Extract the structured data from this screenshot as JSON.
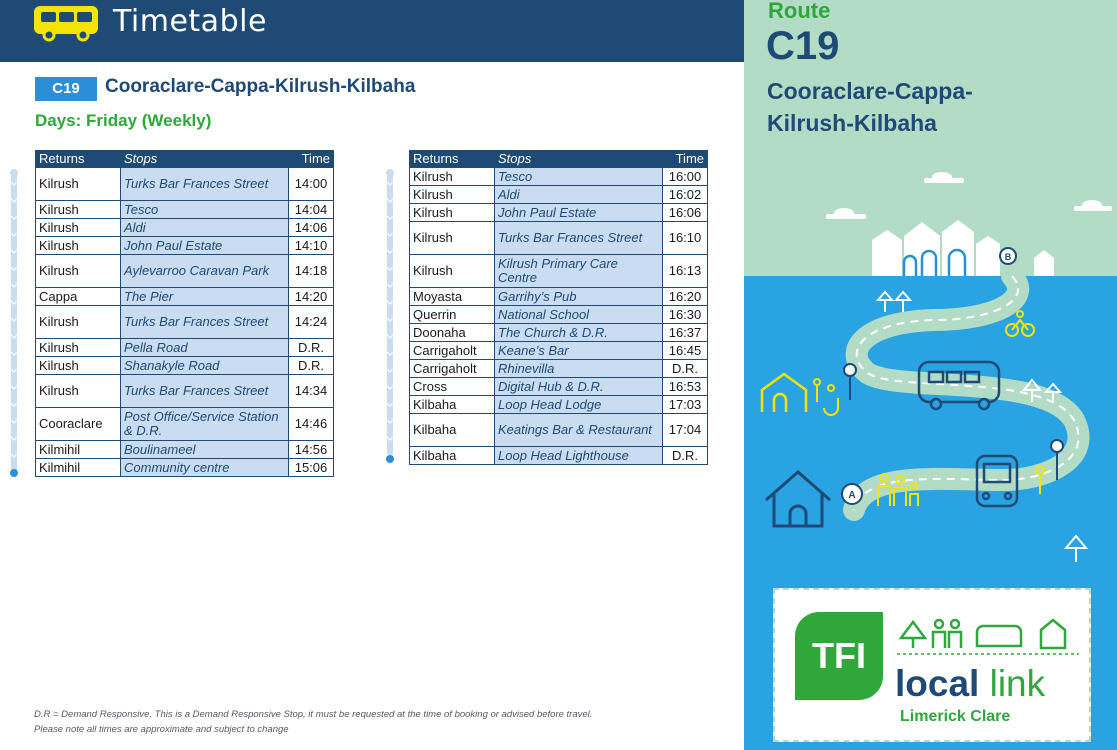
{
  "header": {
    "title": "Timetable",
    "icon": "bus-icon"
  },
  "route": {
    "code": "C19",
    "name": "Cooraclare-Cappa-Kilrush-Kilbaha",
    "days": "Days: Friday (Weekly)"
  },
  "columns": {
    "returns": "Returns",
    "stops": "Stops",
    "time": "Time"
  },
  "table_left": [
    {
      "returns": "Kilrush",
      "stop": "Turks Bar Frances Street",
      "time": "14:00",
      "rows": 2
    },
    {
      "returns": "Kilrush",
      "stop": "Tesco",
      "time": "14:04",
      "rows": 1
    },
    {
      "returns": "Kilrush",
      "stop": "Aldi",
      "time": "14:06",
      "rows": 1
    },
    {
      "returns": "Kilrush",
      "stop": "John Paul Estate",
      "time": "14:10",
      "rows": 1
    },
    {
      "returns": "Kilrush",
      "stop": "Aylevarroo Caravan Park",
      "time": "14:18",
      "rows": 2
    },
    {
      "returns": "Cappa",
      "stop": "The Pier",
      "time": "14:20",
      "rows": 1
    },
    {
      "returns": "Kilrush",
      "stop": "Turks Bar Frances Street",
      "time": "14:24",
      "rows": 2
    },
    {
      "returns": "Kilrush",
      "stop": "Pella Road",
      "time": "D.R.",
      "rows": 1
    },
    {
      "returns": "Kilrush",
      "stop": "Shanakyle Road",
      "time": "D.R.",
      "rows": 1
    },
    {
      "returns": "Kilrush",
      "stop": "Turks Bar Frances Street",
      "time": "14:34",
      "rows": 2
    },
    {
      "returns": "Cooraclare",
      "stop": "Post Office/Service Station & D.R.",
      "time": "14:46",
      "rows": 2
    },
    {
      "returns": "Kilmihil",
      "stop": "Boulinameel",
      "time": "14:56",
      "rows": 1
    },
    {
      "returns": "Kilmihil",
      "stop": "Community centre",
      "time": "15:06",
      "rows": 1
    }
  ],
  "table_right": [
    {
      "returns": "Kilrush",
      "stop": "Tesco",
      "time": "16:00",
      "rows": 1
    },
    {
      "returns": "Kilrush",
      "stop": "Aldi",
      "time": "16:02",
      "rows": 1
    },
    {
      "returns": "Kilrush",
      "stop": "John Paul Estate",
      "time": "16:06",
      "rows": 1
    },
    {
      "returns": "Kilrush",
      "stop": "Turks Bar Frances Street",
      "time": "16:10",
      "rows": 2
    },
    {
      "returns": "Kilrush",
      "stop": "Kilrush Primary Care Centre",
      "time": "16:13",
      "rows": 2
    },
    {
      "returns": "Moyasta",
      "stop": "Garrihy’s Pub",
      "time": "16:20",
      "rows": 1
    },
    {
      "returns": "Querrin",
      "stop": "National School",
      "time": "16:30",
      "rows": 1
    },
    {
      "returns": "Doonaha",
      "stop": "The Church & D.R.",
      "time": "16:37",
      "rows": 1
    },
    {
      "returns": "Carrigaholt",
      "stop": "Keane’s Bar",
      "time": "16:45",
      "rows": 1
    },
    {
      "returns": "Carrigaholt",
      "stop": "Rhinevilla",
      "time": "D.R.",
      "rows": 1
    },
    {
      "returns": "Cross",
      "stop": "Digital Hub & D.R.",
      "time": "16:53",
      "rows": 1
    },
    {
      "returns": "Kilbaha",
      "stop": "Loop Head Lodge",
      "time": "17:03",
      "rows": 1
    },
    {
      "returns": "Kilbaha",
      "stop": "Keatings Bar & Restaurant",
      "time": "17:04",
      "rows": 2
    },
    {
      "returns": "Kilbaha",
      "stop": "Loop Head Lighthouse",
      "time": "D.R.",
      "rows": 1
    }
  ],
  "footnote": {
    "line1": "D.R = Demand Responsive. This is a Demand Responsive Stop, it must be requested at the time of booking or advised before travel.",
    "line2": "Please note all times are approximate and subject to change"
  },
  "sidebar": {
    "route_label": "Route",
    "route_code": "C19",
    "route_name": "Cooraclare-Cappa-Kilrush-Kilbaha",
    "map_marker_b": "B",
    "map_marker_a": "A"
  },
  "logo": {
    "tfi": "TFI",
    "local": "local",
    "link": "link",
    "region": "Limerick Clare"
  },
  "colors": {
    "navy": "#1e4a75",
    "green": "#2fa73a",
    "sky": "#29a3e2",
    "mint": "#b3dcc6",
    "cell_blue": "#c9dcf0"
  }
}
